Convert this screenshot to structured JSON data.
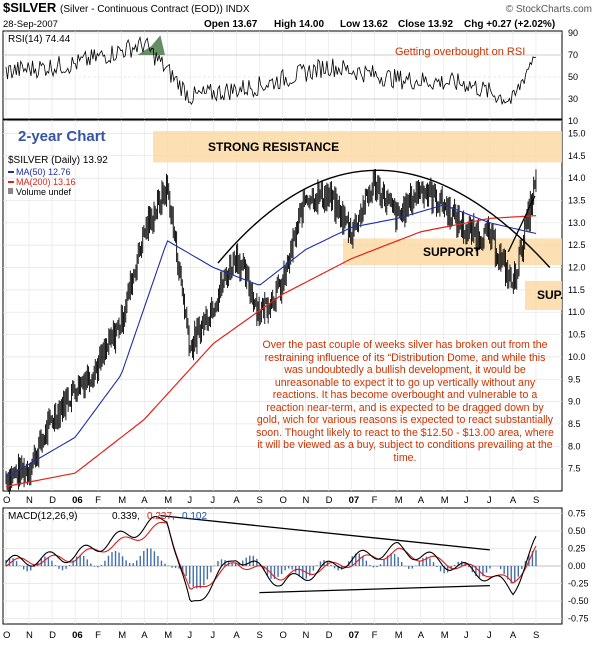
{
  "header": {
    "symbol": "$SILVER",
    "description": "(Silver - Continuous Contract (EOD)) INDX",
    "source": "© StockCharts.com",
    "date": "28-Sep-2007",
    "open": "Open 13.67",
    "high": "High 14.00",
    "low": "Low 13.62",
    "close": "Close 13.92",
    "chg": "Chg +0.27 (+2.02%)"
  },
  "rsi_panel": {
    "label": "RSI(14) 74.44",
    "annotation": "Getting overbought on RSI",
    "ticks": [
      "90",
      "70",
      "50",
      "30",
      "10"
    ]
  },
  "price_panel": {
    "badge": "2-year Chart",
    "legend": {
      "title": "$SILVER (Daily) 13.92",
      "ma50": "MA(50) 12.76",
      "ma200": "MA(200) 13.16",
      "volume": "Volume undef"
    },
    "zones": {
      "resistance": "STRONG RESISTANCE",
      "support": "SUPPORT",
      "sup": "SUP."
    },
    "ticks": [
      "15.0",
      "14.5",
      "14.0",
      "13.5",
      "13.0",
      "12.5",
      "12.0",
      "11.5",
      "11.0",
      "10.5",
      "10.0",
      "9.5",
      "9.0",
      "8.5",
      "8.0",
      "7.5"
    ],
    "commentary": "Over the past couple of weeks silver has broken out from the restraining influence of its “Distribution Dome, and while this was undoubtedly a bullish development, it would be unreasonable to expect it to go up vertically without any reactions. It has become overbought and vulnerable to a reaction near-term, and is expected to be dragged down by gold, wich for various reasons is expected to react substantially soon. Thought likely to react to the $12.50 - $13.00 area, where it will be viewed as a buy, subject to conditions prevailing at the time."
  },
  "macd_panel": {
    "label": "MACD(12,26,9)",
    "value1": "0.339,",
    "value2": "0.237,",
    "value3": "0.102",
    "ticks": [
      "0.75",
      "0.50",
      "0.25",
      "0.00",
      "-0.25",
      "-0.50",
      "-0.75"
    ]
  },
  "x_axis": {
    "labels": [
      "O",
      "N",
      "D",
      "06",
      "F",
      "M",
      "A",
      "M",
      "J",
      "J",
      "A",
      "S",
      "O",
      "N",
      "D",
      "07",
      "F",
      "M",
      "A",
      "M",
      "J",
      "J",
      "A",
      "S"
    ]
  },
  "colors": {
    "price_bars": "#000000",
    "ma50": "#1f2fa6",
    "ma200": "#e2231a",
    "zone_fill": "#fcd9a6",
    "annotation_text": "#cc3300",
    "badge_text": "#3355aa",
    "rsi_overbought_fill": "#4a7a4a",
    "macd_signal": "#d62020",
    "macd_hist": "#2255a0"
  },
  "chart_data": {
    "type": "line",
    "x_axis_kind": "month",
    "price_anchors": {
      "x": [
        "2005-10",
        "2005-11",
        "2005-12",
        "2006-01",
        "2006-02",
        "2006-03",
        "2006-04",
        "2006-05",
        "2006-06",
        "2006-07",
        "2006-08",
        "2006-09",
        "2006-10",
        "2006-11",
        "2006-12",
        "2007-01",
        "2007-02",
        "2007-03",
        "2007-04",
        "2007-05",
        "2007-06",
        "2007-07",
        "2007-08",
        "2007-09"
      ],
      "close": [
        7.3,
        7.5,
        8.6,
        9.3,
        9.8,
        10.8,
        12.8,
        13.8,
        10.2,
        11.2,
        12.3,
        11.0,
        11.6,
        13.6,
        13.6,
        12.8,
        13.9,
        13.1,
        13.8,
        13.4,
        12.8,
        12.7,
        11.6,
        13.9
      ]
    },
    "ma50_anchors": {
      "x": [
        "2005-10",
        "2006-01",
        "2006-03",
        "2006-05",
        "2006-07",
        "2006-09",
        "2006-11",
        "2007-01",
        "2007-03",
        "2007-05",
        "2007-07",
        "2007-09"
      ],
      "values": [
        7.3,
        8.2,
        9.6,
        12.6,
        12.0,
        11.6,
        12.4,
        12.9,
        13.1,
        13.4,
        13.0,
        12.76
      ]
    },
    "ma200_anchors": {
      "x": [
        "2005-10",
        "2006-01",
        "2006-04",
        "2006-07",
        "2006-10",
        "2007-01",
        "2007-04",
        "2007-07",
        "2007-09"
      ],
      "values": [
        7.1,
        7.4,
        8.6,
        10.3,
        11.4,
        12.2,
        12.8,
        13.1,
        13.16
      ]
    },
    "rsi_anchors": {
      "x": [
        "2005-10",
        "2006-01",
        "2006-04",
        "2006-06",
        "2006-09",
        "2006-12",
        "2007-03",
        "2007-06",
        "2007-08",
        "2007-09"
      ],
      "values": [
        55,
        62,
        80,
        32,
        42,
        60,
        48,
        44,
        28,
        74.44
      ]
    },
    "macd_anchors": {
      "x": [
        "2005-10",
        "2006-01",
        "2006-04",
        "2006-05",
        "2006-06",
        "2006-08",
        "2006-10",
        "2007-01",
        "2007-03",
        "2007-05",
        "2007-07",
        "2007-08",
        "2007-09"
      ],
      "macd": [
        0.05,
        0.15,
        0.55,
        0.7,
        -0.6,
        0.15,
        -0.25,
        0.1,
        0.25,
        0.05,
        -0.15,
        -0.35,
        0.339
      ],
      "signal": [
        0.04,
        0.12,
        0.45,
        0.62,
        -0.4,
        0.05,
        -0.15,
        0.05,
        0.2,
        0.05,
        -0.1,
        -0.25,
        0.237
      ]
    },
    "ylim_price": [
      7.0,
      15.3
    ],
    "ylim_rsi": [
      10,
      90
    ],
    "ylim_macd": [
      -0.8,
      0.8
    ],
    "grid": true,
    "legend_position": "top-left"
  }
}
